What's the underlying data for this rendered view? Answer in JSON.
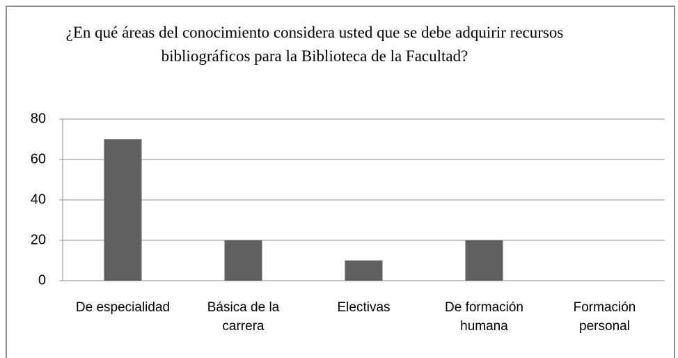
{
  "chart_data": {
    "type": "bar",
    "title": "¿En qué áreas del conocimiento considera usted que se debe adquirir recursos bibliográficos para la Biblioteca de la Facultad?",
    "categories": [
      "De especialidad",
      "Básica de la carrera",
      "Electivas",
      "De formación humana",
      "Formación personal"
    ],
    "values": [
      70,
      20,
      10,
      20,
      0
    ],
    "color": "#606060",
    "ylim": [
      0,
      80
    ],
    "yticks": [
      0,
      20,
      40,
      60,
      80
    ],
    "grid": true
  }
}
